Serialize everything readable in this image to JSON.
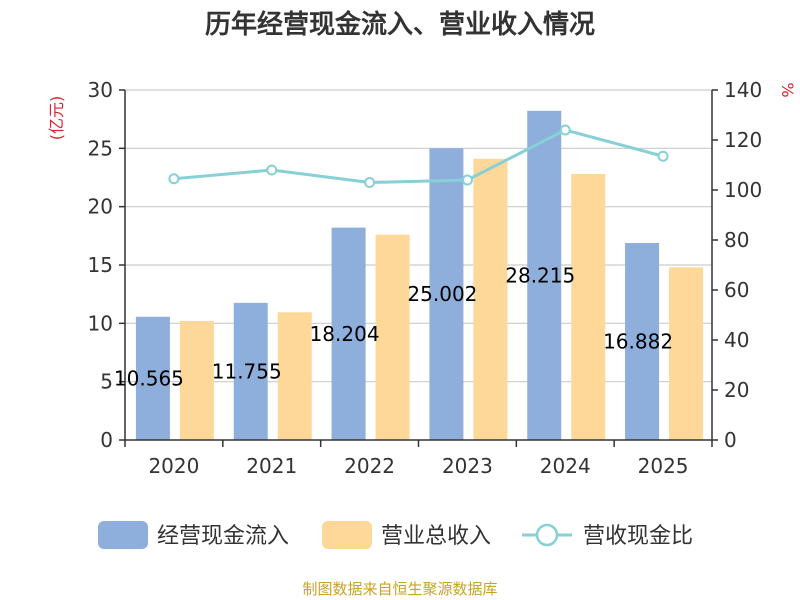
{
  "chart_data": {
    "type": "bar",
    "title": "历年经营现金流入、营业收入情况",
    "categories": [
      "2020",
      "2021",
      "2022",
      "2023",
      "2024",
      "2025"
    ],
    "series": [
      {
        "name": "经营现金流入",
        "type": "bar",
        "axis": "left",
        "color": "#8eaedc",
        "values": [
          10.565,
          11.755,
          18.204,
          25.002,
          28.215,
          16.882
        ],
        "labels": [
          "10.565",
          "11.755",
          "18.204",
          "25.002",
          "28.215",
          "16.882"
        ]
      },
      {
        "name": "营业总收入",
        "type": "bar",
        "axis": "left",
        "color": "#fed899",
        "values": [
          10.2,
          10.95,
          17.6,
          24.1,
          22.8,
          14.8
        ]
      },
      {
        "name": "营收现金比",
        "type": "line",
        "axis": "right",
        "color": "#86d0d6",
        "values": [
          104.5,
          108,
          103,
          104,
          124,
          113.5
        ]
      }
    ],
    "y_left": {
      "label": "(亿元)",
      "lim": [
        0,
        30
      ],
      "ticks": [
        "0",
        "5",
        "10",
        "15",
        "20",
        "25",
        "30"
      ]
    },
    "y_right": {
      "label": "%",
      "lim": [
        0,
        140
      ],
      "ticks": [
        "0",
        "20",
        "40",
        "60",
        "80",
        "100",
        "120",
        "140"
      ]
    },
    "grid": true,
    "legend": "bottom"
  },
  "footer": {
    "source": "制图数据来自恒生聚源数据库"
  }
}
